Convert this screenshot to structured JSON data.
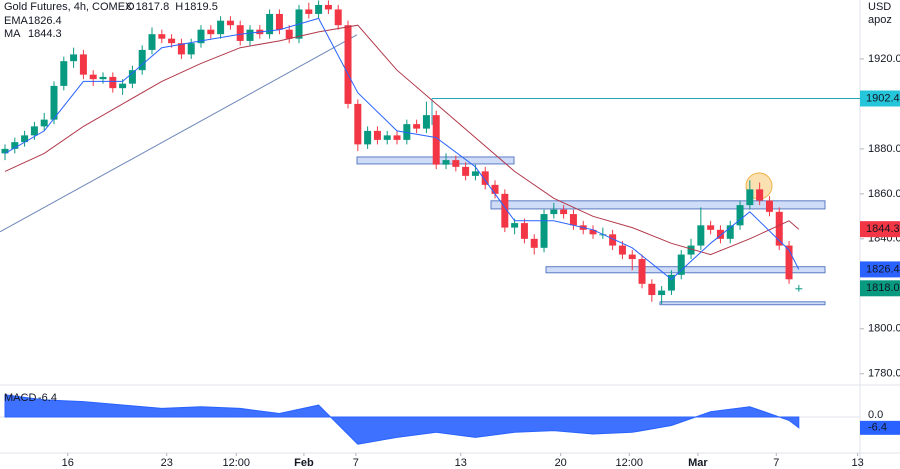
{
  "chart_data": {
    "type": "candlestick",
    "title": "Gold Futures, 4h, COMEX",
    "header": [
      {
        "key": "O",
        "value": 1817.8
      },
      {
        "key": "H",
        "value": 1819.5
      }
    ],
    "currency": "USD",
    "unit_label": "apoz",
    "up_color": "#089981",
    "down_color": "#f23645",
    "open": [
      1878,
      1880,
      1883,
      1886,
      1890,
      1893,
      1908,
      1919,
      1922,
      1913,
      1911,
      1912,
      1907,
      1909,
      1915,
      1924,
      1931,
      1929,
      1927,
      1922,
      1927,
      1933,
      1931,
      1937,
      1935,
      1928,
      1933,
      1931,
      1940,
      1933,
      1929,
      1942,
      1940,
      1944,
      1942,
      1935,
      1900,
      1882,
      1888,
      1884,
      1886,
      1884,
      1891,
      1889,
      1895,
      1873,
      1875,
      1872,
      1868,
      1870,
      1864,
      1860,
      1845,
      1847,
      1840,
      1836,
      1851,
      1853,
      1851,
      1846,
      1844,
      1842,
      1842,
      1837,
      1833,
      1831,
      1820,
      1815,
      1817,
      1824,
      1833,
      1837,
      1846,
      1844,
      1840,
      1846,
      1855,
      1862,
      1857,
      1852,
      1837,
      1817.8
    ],
    "high": [
      1882,
      1885,
      1888,
      1892,
      1896,
      1910,
      1921,
      1925,
      1924,
      1915,
      1914,
      1914,
      1911,
      1917,
      1926,
      1934,
      1933,
      1931,
      1929,
      1929,
      1935,
      1935,
      1939,
      1939,
      1937,
      1935,
      1935,
      1942,
      1942,
      1935,
      1944,
      1945,
      1946,
      1946,
      1944,
      1937,
      1902,
      1890,
      1890,
      1888,
      1888,
      1893,
      1893,
      1901,
      1897,
      1878,
      1877,
      1874,
      1873,
      1872,
      1866,
      1862,
      1849,
      1849,
      1842,
      1853,
      1856,
      1855,
      1853,
      1848,
      1846,
      1845,
      1844,
      1839,
      1835,
      1833,
      1822,
      1819,
      1826,
      1835,
      1840,
      1854,
      1848,
      1846,
      1848,
      1857,
      1866,
      1865,
      1859,
      1854,
      1839,
      1819.5
    ],
    "low": [
      1875,
      1878,
      1881,
      1884,
      1888,
      1891,
      1906,
      1916,
      1911,
      1908,
      1909,
      1905,
      1904,
      1907,
      1913,
      1922,
      1927,
      1925,
      1920,
      1920,
      1925,
      1929,
      1929,
      1933,
      1926,
      1926,
      1929,
      1929,
      1931,
      1927,
      1927,
      1938,
      1938,
      1940,
      1933,
      1898,
      1879,
      1880,
      1882,
      1882,
      1882,
      1882,
      1887,
      1887,
      1871,
      1871,
      1870,
      1866,
      1866,
      1862,
      1858,
      1843,
      1842,
      1838,
      1833,
      1834,
      1849,
      1849,
      1844,
      1842,
      1840,
      1840,
      1835,
      1831,
      1826,
      1818,
      1812,
      1811,
      1815,
      1822,
      1831,
      1835,
      1842,
      1838,
      1838,
      1844,
      1853,
      1855,
      1850,
      1835,
      1820,
      1816.5
    ],
    "close": [
      1880,
      1883,
      1886,
      1890,
      1893,
      1908,
      1919,
      1922,
      1913,
      1911,
      1912,
      1907,
      1909,
      1915,
      1924,
      1931,
      1929,
      1927,
      1922,
      1927,
      1933,
      1931,
      1937,
      1935,
      1928,
      1933,
      1931,
      1940,
      1933,
      1929,
      1942,
      1940,
      1944,
      1942,
      1935,
      1900,
      1882,
      1888,
      1884,
      1886,
      1884,
      1891,
      1889,
      1895,
      1873,
      1875,
      1872,
      1868,
      1870,
      1864,
      1860,
      1845,
      1847,
      1840,
      1836,
      1851,
      1853,
      1851,
      1846,
      1844,
      1842,
      1842,
      1837,
      1833,
      1831,
      1820,
      1815,
      1817,
      1824,
      1833,
      1837,
      1846,
      1844,
      1840,
      1846,
      1855,
      1862,
      1857,
      1852,
      1837,
      1822,
      1818.0
    ],
    "ema": {
      "name": "EMA",
      "color": "#2962ff",
      "x": [
        0,
        4,
        8,
        12,
        16,
        20,
        24,
        28,
        32,
        36,
        40,
        44,
        48,
        52,
        56,
        60,
        64,
        68,
        72,
        76,
        80,
        81
      ],
      "values": [
        1878,
        1888,
        1910,
        1910,
        1925,
        1928,
        1931,
        1933,
        1938,
        1905,
        1888,
        1885,
        1872,
        1848,
        1848,
        1844,
        1836,
        1822,
        1838,
        1852,
        1835,
        1826.4
      ]
    },
    "ma": {
      "name": "MA",
      "color": "#b2384a",
      "x": [
        0,
        4,
        8,
        12,
        16,
        20,
        24,
        28,
        32,
        36,
        40,
        44,
        48,
        52,
        56,
        60,
        64,
        68,
        72,
        76,
        80,
        81
      ],
      "values": [
        1870,
        1878,
        1890,
        1900,
        1910,
        1918,
        1925,
        1928,
        1932,
        1935,
        1915,
        1900,
        1885,
        1870,
        1858,
        1850,
        1845,
        1838,
        1833,
        1840,
        1848,
        1844.3
      ]
    },
    "xlim": [
      -0.51,
      87.24
    ],
    "xticks": [
      {
        "value": 6.4,
        "label": "16"
      },
      {
        "value": 16.5,
        "label": "23"
      },
      {
        "value": 23.6,
        "label": "12:00"
      },
      {
        "value": 30.5,
        "label": "Feb"
      },
      {
        "value": 35.8,
        "label": "7"
      },
      {
        "value": 46.5,
        "label": "13"
      },
      {
        "value": 56.7,
        "label": "20"
      },
      {
        "value": 63.7,
        "label": "12:00"
      },
      {
        "value": 70.7,
        "label": "Mar"
      },
      {
        "value": 78.7,
        "label": "7"
      },
      {
        "value": 87,
        "label": "13"
      }
    ],
    "ylim": [
      1775,
      1946.2
    ],
    "yticks": [
      {
        "value": 1920,
        "label": "1920.0"
      },
      {
        "value": 1880,
        "label": "1880.0"
      },
      {
        "value": 1860,
        "label": "1860.0"
      },
      {
        "value": 1840,
        "label": "1840.0"
      },
      {
        "value": 1800,
        "label": "1800.0"
      },
      {
        "value": 1780,
        "label": "1780.0"
      }
    ],
    "grid": false,
    "price_tags": [
      {
        "value": 1902.4,
        "color": "#26c6da",
        "text_color": "#131722"
      },
      {
        "value": 1844.3,
        "color": "#f23645",
        "text_color": "#ffffff"
      },
      {
        "value": 1826.4,
        "color": "#2962ff",
        "text_color": "#ffffff"
      },
      {
        "value": 1818,
        "label": "1818.0",
        "color": "#089981",
        "text_color": "#ffffff"
      }
    ],
    "zones": [
      {
        "low": 1873.3,
        "high": 1876.4
      },
      {
        "low": 1853.3,
        "high": 1856.9
      },
      {
        "low": 1824.9,
        "high": 1827.6
      },
      {
        "low": 1810.7,
        "high": 1812
      }
    ],
    "trendline": [
      1843.1,
      1930.7
    ],
    "macd": {
      "name": "MACD",
      "color": "#2962ff",
      "x": [
        0,
        4,
        8,
        12,
        16,
        20,
        24,
        28,
        32,
        36,
        40,
        44,
        48,
        52,
        56,
        60,
        64,
        68,
        72,
        76,
        80,
        81
      ],
      "values": [
        13,
        10,
        9,
        7,
        5,
        6,
        5,
        2,
        7,
        -16,
        -12,
        -9,
        -12,
        -9,
        -8,
        -10,
        -9,
        -5,
        3,
        6,
        -2,
        -6.4
      ],
      "ylim": [
        -20.6,
        17.6
      ],
      "yticks": [
        {
          "value": 0,
          "label": "0.0"
        }
      ]
    }
  }
}
